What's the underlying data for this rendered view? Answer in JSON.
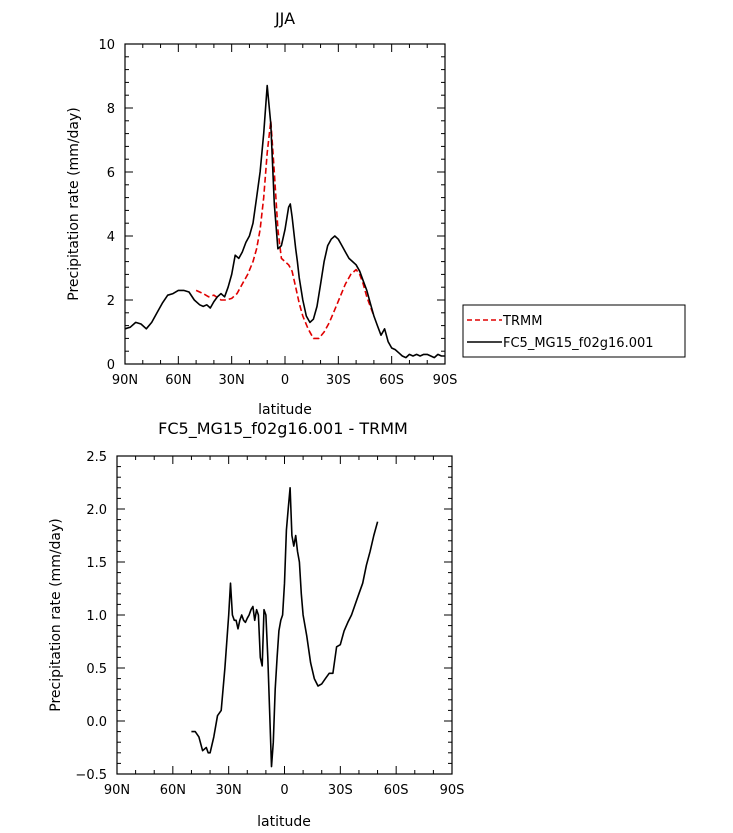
{
  "chart_data": [
    {
      "type": "line",
      "title": "JJA",
      "xlabel": "latitude",
      "ylabel": "Precipitation rate (mm/day)",
      "xlim": [
        -90,
        90
      ],
      "ylim": [
        0,
        10
      ],
      "x_ticks": [
        -90,
        -60,
        -30,
        0,
        30,
        60,
        90
      ],
      "x_tick_labels": [
        "90N",
        "60N",
        "30N",
        "0",
        "30S",
        "60S",
        "90S"
      ],
      "y_ticks": [
        0,
        2,
        4,
        6,
        8,
        10
      ],
      "y_tick_labels": [
        "0",
        "2",
        "4",
        "6",
        "8",
        "10"
      ],
      "legend": {
        "position": "right",
        "entries": [
          "TRMM",
          "FC5_MG15_f02g16.001"
        ]
      },
      "series": [
        {
          "name": "TRMM",
          "color": "#e00000",
          "dash": "dashed",
          "x": [
            -50,
            -46,
            -43,
            -40,
            -36,
            -33,
            -30,
            -27,
            -24,
            -21,
            -18,
            -16,
            -14,
            -12,
            -10,
            -8,
            -6,
            -4,
            -2,
            0,
            2,
            4,
            6,
            8,
            10,
            13,
            16,
            19,
            22,
            25,
            28,
            31,
            34,
            37,
            40,
            42,
            44,
            46,
            48,
            50
          ],
          "y": [
            2.3,
            2.2,
            2.1,
            2.15,
            2.0,
            2.0,
            2.05,
            2.2,
            2.5,
            2.8,
            3.2,
            3.6,
            4.2,
            5.2,
            6.6,
            7.6,
            6.0,
            4.2,
            3.3,
            3.2,
            3.1,
            2.9,
            2.4,
            1.9,
            1.5,
            1.1,
            0.8,
            0.8,
            1.0,
            1.3,
            1.7,
            2.1,
            2.5,
            2.8,
            2.95,
            2.8,
            2.5,
            2.1,
            1.8,
            1.5
          ]
        },
        {
          "name": "FC5_MG15_f02g16.001",
          "color": "#000000",
          "dash": "solid",
          "x": [
            -90,
            -87,
            -84,
            -81,
            -78,
            -75,
            -72,
            -69,
            -66,
            -63,
            -60,
            -57,
            -54,
            -51,
            -48,
            -46,
            -44,
            -42,
            -40,
            -38,
            -36,
            -34,
            -32,
            -30,
            -28,
            -26,
            -24,
            -22,
            -20,
            -18,
            -16,
            -14,
            -12,
            -10,
            -8,
            -6,
            -4,
            -2,
            0,
            2,
            3,
            4,
            5,
            6,
            7,
            8,
            10,
            12,
            14,
            16,
            18,
            20,
            22,
            24,
            26,
            28,
            30,
            32,
            34,
            36,
            38,
            40,
            42,
            44,
            46,
            48,
            50,
            52,
            54,
            56,
            58,
            60,
            62,
            64,
            66,
            68,
            70,
            72,
            74,
            76,
            78,
            80,
            82,
            84,
            86,
            88,
            90
          ],
          "y": [
            1.1,
            1.15,
            1.3,
            1.25,
            1.1,
            1.3,
            1.6,
            1.9,
            2.15,
            2.2,
            2.3,
            2.3,
            2.25,
            2.0,
            1.85,
            1.8,
            1.85,
            1.75,
            1.95,
            2.1,
            2.2,
            2.1,
            2.4,
            2.8,
            3.4,
            3.3,
            3.5,
            3.8,
            4.0,
            4.4,
            5.2,
            6.0,
            7.2,
            8.7,
            7.5,
            5.0,
            3.6,
            3.7,
            4.2,
            4.9,
            5.0,
            4.6,
            4.1,
            3.6,
            3.2,
            2.7,
            2.0,
            1.5,
            1.3,
            1.4,
            1.8,
            2.5,
            3.2,
            3.7,
            3.9,
            4.0,
            3.9,
            3.7,
            3.5,
            3.3,
            3.2,
            3.1,
            2.9,
            2.6,
            2.3,
            1.9,
            1.5,
            1.2,
            0.9,
            1.1,
            0.7,
            0.5,
            0.45,
            0.35,
            0.25,
            0.2,
            0.3,
            0.25,
            0.3,
            0.25,
            0.3,
            0.3,
            0.25,
            0.2,
            0.3,
            0.25,
            0.25
          ]
        }
      ]
    },
    {
      "type": "line",
      "title": "FC5_MG15_f02g16.001 - TRMM",
      "xlabel": "latitude",
      "ylabel": "Precipitation rate (mm/day)",
      "xlim": [
        -90,
        90
      ],
      "ylim": [
        -0.5,
        2.5
      ],
      "x_ticks": [
        -90,
        -60,
        -30,
        0,
        30,
        60,
        90
      ],
      "x_tick_labels": [
        "90N",
        "60N",
        "30N",
        "0",
        "30S",
        "60S",
        "90S"
      ],
      "y_ticks": [
        -0.5,
        0.0,
        0.5,
        1.0,
        1.5,
        2.0,
        2.5
      ],
      "y_tick_labels": [
        "−0.5",
        "0.0",
        "0.5",
        "1.0",
        "1.5",
        "2.0",
        "2.5"
      ],
      "series": [
        {
          "color": "#000000",
          "dash": "solid",
          "x": [
            -50,
            -48,
            -46,
            -44,
            -42,
            -41,
            -40,
            -38,
            -36,
            -34,
            -32,
            -30,
            -29,
            -28,
            -27,
            -26,
            -25,
            -24,
            -23,
            -22,
            -21,
            -20,
            -19,
            -18,
            -17,
            -16,
            -15,
            -14,
            -13,
            -12,
            -11,
            -10,
            -9,
            -8,
            -7,
            -6,
            -5,
            -4,
            -3,
            -2,
            -1,
            0,
            1,
            2,
            3,
            4,
            5,
            6,
            7,
            8,
            9,
            10,
            12,
            14,
            16,
            18,
            20,
            22,
            24,
            26,
            28,
            30,
            32,
            34,
            36,
            38,
            40,
            42,
            44,
            46,
            48,
            50
          ],
          "y": [
            -0.1,
            -0.1,
            -0.15,
            -0.28,
            -0.25,
            -0.3,
            -0.3,
            -0.15,
            0.05,
            0.1,
            0.5,
            1.0,
            1.3,
            1.0,
            0.95,
            0.95,
            0.87,
            0.95,
            1.0,
            0.95,
            0.93,
            0.97,
            1.0,
            1.05,
            1.08,
            0.95,
            1.05,
            1.0,
            0.6,
            0.52,
            1.05,
            1.0,
            0.6,
            0.1,
            -0.43,
            -0.2,
            0.3,
            0.6,
            0.85,
            0.95,
            1.0,
            1.3,
            1.8,
            2.0,
            2.2,
            1.75,
            1.65,
            1.75,
            1.6,
            1.5,
            1.2,
            1.0,
            0.8,
            0.55,
            0.4,
            0.33,
            0.35,
            0.4,
            0.45,
            0.45,
            0.7,
            0.72,
            0.85,
            0.93,
            1.0,
            1.1,
            1.2,
            1.3,
            1.47,
            1.6,
            1.75,
            1.88
          ]
        }
      ]
    }
  ]
}
